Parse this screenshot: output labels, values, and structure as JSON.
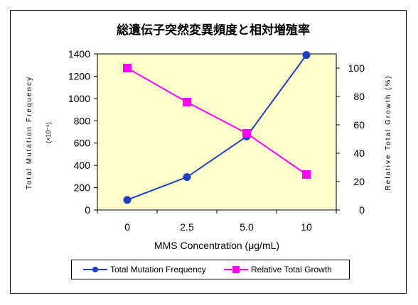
{
  "chart_data": {
    "type": "line",
    "title": "総遺伝子突然変異頻度と相対増殖率",
    "xlabel": "MMS Concentration (μg/mL)",
    "ylabel_left": "Total Mutation Frequency",
    "ylabel_left_unit": "(×10⁻⁶)",
    "ylabel_right": "Relative Total Growth (%)",
    "categories": [
      "0",
      "2.5",
      "5.0",
      "10"
    ],
    "y_left_lim": [
      0,
      1400
    ],
    "y_left_ticks": [
      "0",
      "200",
      "400",
      "600",
      "800",
      "1000",
      "1200",
      "1400"
    ],
    "y_right_lim": [
      0,
      110
    ],
    "y_right_ticks": [
      "0",
      "20",
      "40",
      "60",
      "80",
      "100"
    ],
    "grid": false,
    "legend_position": "bottom",
    "series": [
      {
        "name": "Total Mutation Frequency",
        "axis": "left",
        "color": "#1f3fbf",
        "marker": "circle",
        "values": [
          90,
          295,
          660,
          1390
        ]
      },
      {
        "name": "Relative Total Growth",
        "axis": "right",
        "color": "#ff00ff",
        "marker": "square",
        "values": [
          100,
          76,
          54,
          25
        ]
      }
    ],
    "plot_background": "#ffffcc"
  }
}
